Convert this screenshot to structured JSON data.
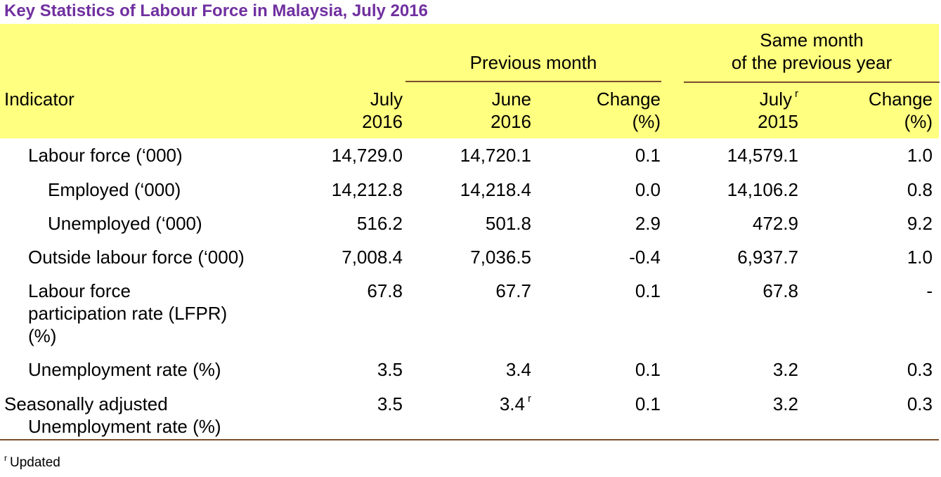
{
  "title": "Key Statistics of Labour Force in Malaysia, July 2016",
  "header": {
    "group_prev": "Previous month",
    "group_same_l1": "Same month",
    "group_same_l2": "of the previous year",
    "indicator": "Indicator",
    "col1_l1": "July",
    "col1_l2": "2016",
    "col2_l1": "June",
    "col2_l2": "2016",
    "col3_l1": "Change",
    "col3_l2": "(%)",
    "col4_l1": "July",
    "col4_sup": "r",
    "col4_l2": "2015",
    "col5_l1": "Change",
    "col5_l2": "(%)"
  },
  "rows": [
    {
      "label": "Labour force (‘000)",
      "v1": "14,729.0",
      "v2": "14,720.1",
      "v3": "0.1",
      "v4": "14,579.1",
      "v5": "1.0"
    },
    {
      "label": "Employed (‘000)",
      "v1": "14,212.8",
      "v2": "14,218.4",
      "v3": "0.0",
      "v4": "14,106.2",
      "v5": "0.8"
    },
    {
      "label": "Unemployed (‘000)",
      "v1": "516.2",
      "v2": "501.8",
      "v3": "2.9",
      "v4": "472.9",
      "v5": "9.2"
    },
    {
      "label": "Outside labour force (‘000)",
      "v1": "7,008.4",
      "v2": "7,036.5",
      "v3": "-0.4",
      "v4": "6,937.7",
      "v5": "1.0"
    },
    {
      "label_l1": "Labour force",
      "label_l2": "participation rate (LFPR)",
      "label_l3": "(%)",
      "v1": "67.8",
      "v2": "67.7",
      "v3": "0.1",
      "v4": "67.8",
      "v5": "-"
    },
    {
      "label": "Unemployment rate (%)",
      "v1": "3.5",
      "v2": "3.4",
      "v3": "0.1",
      "v4": "3.2",
      "v5": "0.3"
    },
    {
      "label_l1": "Seasonally adjusted",
      "label_l2": "Unemployment rate (%)",
      "v1": "3.5",
      "v2": "3.4",
      "v2_sup": "r",
      "v3": "0.1",
      "v4": "3.2",
      "v5": "0.3"
    }
  ],
  "footnote": {
    "mark": "r",
    "text": "Updated"
  },
  "colors": {
    "title": "#7030a0",
    "header_bg": "#ffff80",
    "rule": "#7a4e2e"
  }
}
